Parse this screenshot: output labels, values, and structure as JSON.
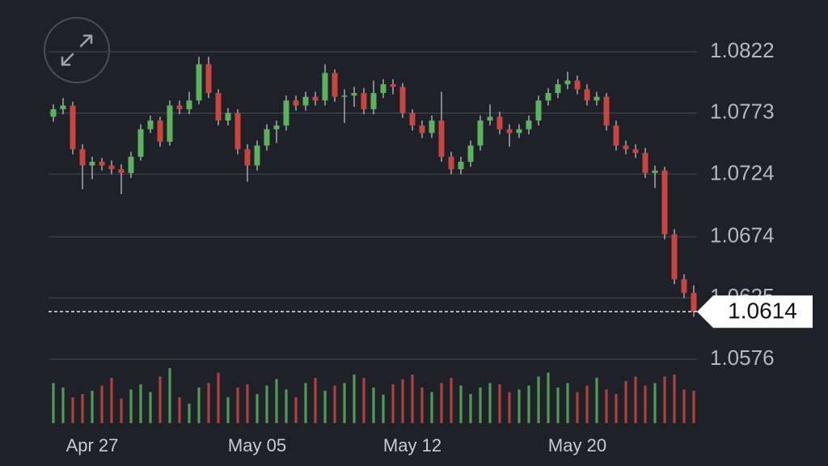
{
  "chart_data": {
    "type": "candlestick",
    "categories": [
      null,
      null,
      null,
      null,
      "Apr 27",
      null,
      null,
      null,
      null,
      null,
      null,
      null,
      null,
      null,
      null,
      null,
      null,
      null,
      null,
      null,
      null,
      "May 05",
      null,
      null,
      null,
      null,
      null,
      null,
      null,
      null,
      null,
      null,
      null,
      null,
      null,
      null,
      null,
      "May 12",
      null,
      null,
      null,
      null,
      null,
      null,
      null,
      null,
      null,
      null,
      null,
      null,
      null,
      null,
      null,
      null,
      "May 20",
      null,
      null,
      null,
      null,
      null,
      null,
      null,
      null,
      null,
      null,
      null,
      null
    ],
    "open": [
      1.077,
      1.0776,
      1.0779,
      1.0744,
      1.0731,
      1.0734,
      1.0731,
      1.0728,
      1.0725,
      1.0738,
      1.076,
      1.0767,
      1.075,
      1.0779,
      1.0776,
      1.0783,
      1.0812,
      1.0789,
      1.0767,
      1.0773,
      1.0744,
      1.0731,
      1.0747,
      1.076,
      1.0763,
      1.0783,
      1.0779,
      1.0786,
      1.0783,
      1.0805,
      1.0786,
      1.0787,
      1.0789,
      1.0776,
      1.0789,
      1.0796,
      1.0794,
      1.0773,
      1.0763,
      1.0757,
      1.0767,
      1.0738,
      1.0728,
      1.0734,
      1.0747,
      1.0767,
      1.077,
      1.076,
      1.0757,
      1.076,
      1.0767,
      1.0783,
      1.0789,
      1.0796,
      1.0799,
      1.0792,
      1.0783,
      1.0786,
      1.0763,
      1.0747,
      1.0744,
      1.0741,
      1.0725,
      1.0727,
      1.0676,
      1.064,
      1.0629
    ],
    "high": [
      1.078,
      1.0785,
      1.0782,
      1.0748,
      1.0738,
      1.0737,
      1.0735,
      1.0732,
      1.0742,
      1.0764,
      1.0771,
      1.077,
      1.0783,
      1.0783,
      1.079,
      1.0818,
      1.0818,
      1.0792,
      1.0777,
      1.0776,
      1.0748,
      1.0751,
      1.0764,
      1.0767,
      1.0787,
      1.0787,
      1.079,
      1.079,
      1.0812,
      1.0808,
      1.0792,
      1.0794,
      1.0793,
      1.0799,
      1.08,
      1.08,
      1.0797,
      1.0776,
      1.0767,
      1.0771,
      1.079,
      1.0742,
      1.0738,
      1.0751,
      1.0771,
      1.078,
      1.0774,
      1.0764,
      1.0764,
      1.0771,
      1.0787,
      1.0793,
      1.08,
      1.0806,
      1.0803,
      1.0796,
      1.079,
      1.0789,
      1.0767,
      1.0751,
      1.0748,
      1.0745,
      1.0731,
      1.073,
      1.068,
      1.0644,
      1.0635
    ],
    "low": [
      1.0766,
      1.0772,
      1.074,
      1.0712,
      1.072,
      1.0727,
      1.0724,
      1.0708,
      1.0721,
      1.0735,
      1.0757,
      1.0746,
      1.0747,
      1.0772,
      1.0772,
      1.078,
      1.0785,
      1.0763,
      1.0763,
      1.074,
      1.0718,
      1.0727,
      1.0743,
      1.0749,
      1.0759,
      1.0775,
      1.0775,
      1.0779,
      1.0779,
      1.0782,
      1.0765,
      1.0778,
      1.0772,
      1.0772,
      1.0785,
      1.0788,
      1.0769,
      1.0759,
      1.0753,
      1.0753,
      1.0734,
      1.0724,
      1.0724,
      1.073,
      1.0743,
      1.0763,
      1.0756,
      1.0746,
      1.0753,
      1.0756,
      1.0763,
      1.0779,
      1.0785,
      1.0792,
      1.0788,
      1.0779,
      1.0779,
      1.0759,
      1.0743,
      1.074,
      1.0737,
      1.0721,
      1.0713,
      1.0672,
      1.0636,
      1.0625,
      1.061
    ],
    "close": [
      1.0776,
      1.0779,
      1.0744,
      1.0731,
      1.0734,
      1.0731,
      1.0728,
      1.0725,
      1.0738,
      1.076,
      1.0767,
      1.075,
      1.0779,
      1.0776,
      1.0783,
      1.0812,
      1.0789,
      1.0767,
      1.0773,
      1.0744,
      1.0731,
      1.0747,
      1.076,
      1.0763,
      1.0783,
      1.0779,
      1.0786,
      1.0783,
      1.0805,
      1.0786,
      1.0787,
      1.0789,
      1.0776,
      1.0789,
      1.0796,
      1.0794,
      1.0773,
      1.0763,
      1.0757,
      1.0767,
      1.0738,
      1.0728,
      1.0734,
      1.0747,
      1.0767,
      1.077,
      1.076,
      1.0757,
      1.076,
      1.0767,
      1.0783,
      1.0789,
      1.0796,
      1.0799,
      1.0792,
      1.0783,
      1.0786,
      1.0763,
      1.0747,
      1.0744,
      1.0741,
      1.0725,
      1.0727,
      1.0676,
      1.064,
      1.0629,
      1.0614
    ],
    "volumes": [
      62,
      55,
      40,
      45,
      50,
      58,
      70,
      38,
      52,
      60,
      48,
      72,
      85,
      40,
      30,
      55,
      62,
      78,
      40,
      55,
      60,
      45,
      58,
      68,
      52,
      40,
      62,
      70,
      50,
      58,
      62,
      75,
      70,
      55,
      44,
      60,
      68,
      75,
      55,
      48,
      62,
      70,
      58,
      45,
      55,
      62,
      60,
      48,
      52,
      58,
      72,
      78,
      55,
      62,
      48,
      58,
      70,
      52,
      45,
      65,
      72,
      58,
      62,
      72,
      75,
      52,
      50
    ],
    "up_color": "#5bb15c",
    "down_color": "#c9453e",
    "flat_color": "#9a9ca0",
    "ylim": [
      1.0576,
      1.0822
    ],
    "yticks": [
      1.0576,
      1.0625,
      1.0674,
      1.0724,
      1.0773,
      1.0822
    ],
    "vlim": [
      0,
      100
    ],
    "grid": true,
    "last_price": 1.0614
  }
}
